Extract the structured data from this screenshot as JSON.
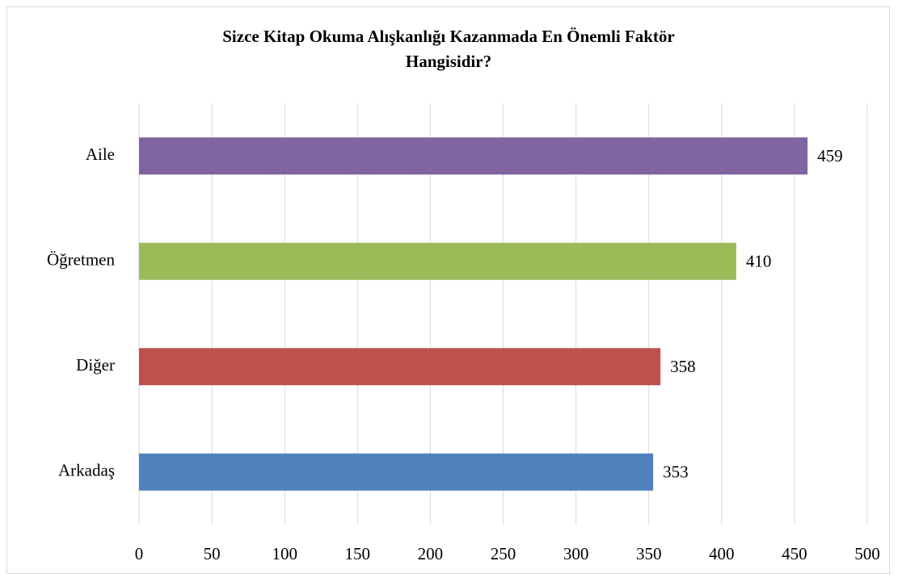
{
  "chart_data": {
    "type": "bar",
    "orientation": "horizontal",
    "title": "Sizce Kitap Okuma Alışkanlığı Kazanmada En Önemli Faktör Hangisidir?",
    "categories": [
      "Aile",
      "Öğretmen",
      "Diğer",
      "Arkadaş"
    ],
    "values": [
      459,
      410,
      358,
      353
    ],
    "colors": [
      "#8064a2",
      "#9bbb59",
      "#c0504d",
      "#4f81bd"
    ],
    "xlim": [
      0,
      500
    ],
    "xticks": [
      0,
      50,
      100,
      150,
      200,
      250,
      300,
      350,
      400,
      450,
      500
    ],
    "grid": true
  }
}
